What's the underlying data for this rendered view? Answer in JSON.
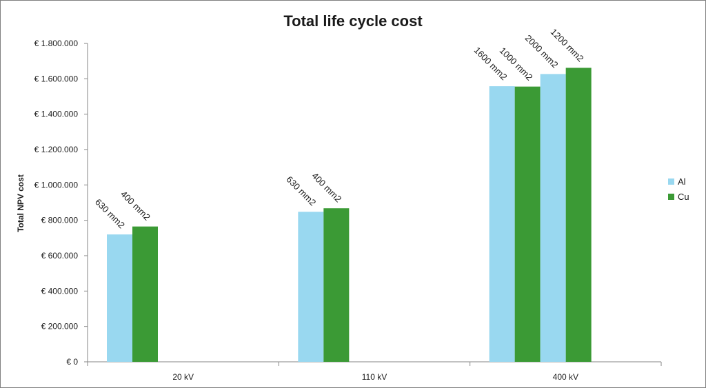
{
  "chart_data": {
    "type": "bar",
    "title": "Total life cycle cost",
    "xlabel": "",
    "ylabel": "Total NPV cost",
    "ylim": [
      0,
      1800000
    ],
    "yticks": [
      {
        "value": 0,
        "label": "€ 0"
      },
      {
        "value": 200000,
        "label": "€ 200.000"
      },
      {
        "value": 400000,
        "label": "€ 400.000"
      },
      {
        "value": 600000,
        "label": "€ 600.000"
      },
      {
        "value": 800000,
        "label": "€ 800.000"
      },
      {
        "value": 1000000,
        "label": "€ 1.000.000"
      },
      {
        "value": 1200000,
        "label": "€ 1.200.000"
      },
      {
        "value": 1400000,
        "label": "€ 1.400.000"
      },
      {
        "value": 1600000,
        "label": "€ 1.600.000"
      },
      {
        "value": 1800000,
        "label": "€ 1.800.000"
      }
    ],
    "grid": false,
    "legend_position": "right",
    "categories": [
      "20 kV",
      "110 kV",
      "400 kV"
    ],
    "series": [
      {
        "name": "Al",
        "color": "#99d8f0"
      },
      {
        "name": "Cu",
        "color": "#3b9a35"
      }
    ],
    "bars": [
      {
        "category": "20 kV",
        "series": "Al",
        "value": 720000,
        "label": "630 mm2"
      },
      {
        "category": "20 kV",
        "series": "Cu",
        "value": 765000,
        "label": "400 mm2"
      },
      {
        "category": "110 kV",
        "series": "Al",
        "value": 848000,
        "label": "630 mm2"
      },
      {
        "category": "110 kV",
        "series": "Cu",
        "value": 868000,
        "label": "400 mm2"
      },
      {
        "category": "400 kV",
        "series": "Al",
        "value": 1558000,
        "label": "1600 mm2"
      },
      {
        "category": "400 kV",
        "series": "Cu",
        "value": 1556000,
        "label": "1000 mm2"
      },
      {
        "category": "400 kV",
        "series": "Al",
        "value": 1627000,
        "label": "2000 mm2"
      },
      {
        "category": "400 kV",
        "series": "Cu",
        "value": 1662000,
        "label": "1200 mm2"
      }
    ]
  }
}
